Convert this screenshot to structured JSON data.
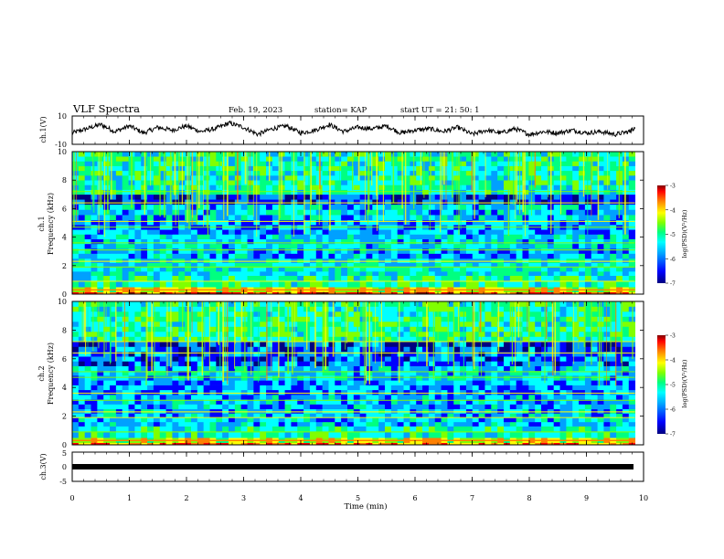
{
  "header": {
    "title": "VLF Spectra",
    "date": "Feb. 19, 2023",
    "station": "station= KAP",
    "start": "start  UT  =   21: 50: 1"
  },
  "chart_data": [
    {
      "type": "line",
      "panel": "ch1-waveform",
      "ylabel": "ch.1(V)",
      "ylim": [
        -10,
        10
      ],
      "yticks": [
        "10",
        "-10"
      ],
      "xlim": [
        0,
        10
      ],
      "color": "#000000",
      "x": [
        0,
        0.25,
        0.5,
        0.75,
        1,
        1.25,
        1.5,
        1.75,
        2,
        2.25,
        2.5,
        2.75,
        3,
        3.25,
        3.5,
        3.75,
        4,
        4.25,
        4.5,
        4.75,
        5,
        5.25,
        5.5,
        5.75,
        6,
        6.25,
        6.5,
        6.75,
        7,
        7.25,
        7.5,
        7.75,
        8,
        8.25,
        8.5,
        8.75,
        9,
        9.25,
        9.5,
        9.75,
        9.85
      ],
      "y": [
        -2,
        1,
        4,
        -1,
        3,
        -2,
        2,
        0,
        3,
        -1,
        1,
        5,
        2,
        -3,
        1,
        3,
        -2,
        0,
        4,
        -1,
        2,
        1,
        3,
        -2,
        0,
        1,
        -1,
        2,
        -3,
        0,
        -2,
        1,
        -3,
        -1,
        -2,
        0,
        -2,
        -1,
        -3,
        -1,
        2
      ]
    },
    {
      "type": "heatmap",
      "panel": "ch1-spectrogram",
      "ylabel": "ch.1\nFrequency (kHz)",
      "ylim": [
        0,
        10
      ],
      "yticks": [
        "0",
        "2",
        "4",
        "6",
        "8",
        "10"
      ],
      "xlim": [
        0,
        9.85
      ],
      "colorbar": {
        "label": "log(PSD)(V²/Hz)",
        "range": [
          -7,
          -3
        ],
        "ticks": [
          "-3",
          "-4",
          "-5",
          "-6",
          "-7"
        ]
      },
      "colormap": [
        "#000080",
        "#0000ff",
        "#00a0ff",
        "#00ffff",
        "#00ff80",
        "#80ff00",
        "#ffff00",
        "#ff8000",
        "#ff0000",
        "#800000"
      ],
      "bands": [
        {
          "f": [
            0,
            0.15
          ],
          "level": -3.8
        },
        {
          "f": [
            0.15,
            0.5
          ],
          "level": -4.5
        },
        {
          "f": [
            0.5,
            1.3
          ],
          "level": -5.3
        },
        {
          "f": [
            1.3,
            2.5
          ],
          "level": -5.6
        },
        {
          "f": [
            2.5,
            3.2
          ],
          "level": -5.9
        },
        {
          "f": [
            3.2,
            4.2
          ],
          "level": -5.7
        },
        {
          "f": [
            4.2,
            5.2
          ],
          "level": -6.0
        },
        {
          "f": [
            5.2,
            6.3
          ],
          "level": -5.8
        },
        {
          "f": [
            6.3,
            7.0
          ],
          "level": -6.4
        },
        {
          "f": [
            7.0,
            10
          ],
          "level": -5.4
        }
      ]
    },
    {
      "type": "heatmap",
      "panel": "ch2-spectrogram",
      "ylabel": "ch.2\nFrequency (kHz)",
      "ylim": [
        0,
        10
      ],
      "yticks": [
        "0",
        "2",
        "4",
        "6",
        "8",
        "10"
      ],
      "xlim": [
        0,
        9.85
      ],
      "colorbar": {
        "label": "log(PSD)(V²/Hz)",
        "range": [
          -7,
          -3
        ],
        "ticks": [
          "-3",
          "-4",
          "-5",
          "-6",
          "-7"
        ]
      },
      "colormap": [
        "#000080",
        "#0000ff",
        "#00a0ff",
        "#00ffff",
        "#00ff80",
        "#80ff00",
        "#ffff00",
        "#ff8000",
        "#ff0000",
        "#800000"
      ],
      "bands": [
        {
          "f": [
            0,
            0.15
          ],
          "level": -4.0
        },
        {
          "f": [
            0.15,
            0.5
          ],
          "level": -4.6
        },
        {
          "f": [
            0.5,
            1.3
          ],
          "level": -5.4
        },
        {
          "f": [
            1.3,
            2.5
          ],
          "level": -5.8
        },
        {
          "f": [
            2.5,
            3.5
          ],
          "level": -5.9
        },
        {
          "f": [
            3.5,
            4.5
          ],
          "level": -6.0
        },
        {
          "f": [
            4.5,
            5.5
          ],
          "level": -5.7
        },
        {
          "f": [
            5.5,
            6.5
          ],
          "level": -6.2
        },
        {
          "f": [
            6.5,
            7.2
          ],
          "level": -6.3
        },
        {
          "f": [
            7.2,
            10
          ],
          "level": -5.3
        }
      ]
    },
    {
      "type": "line",
      "panel": "ch3-waveform",
      "ylabel": "ch.3(V)",
      "ylim": [
        -5,
        5
      ],
      "yticks": [
        "5",
        "0",
        "-5"
      ],
      "xlim": [
        0,
        10
      ],
      "color": "#000000",
      "x": [
        0,
        9.85
      ],
      "y": [
        0,
        0
      ]
    }
  ],
  "xaxis": {
    "label": "Time  (min)",
    "ticks": [
      "0",
      "1",
      "2",
      "3",
      "4",
      "5",
      "6",
      "7",
      "8",
      "9",
      "10"
    ],
    "range": [
      0,
      10
    ]
  }
}
